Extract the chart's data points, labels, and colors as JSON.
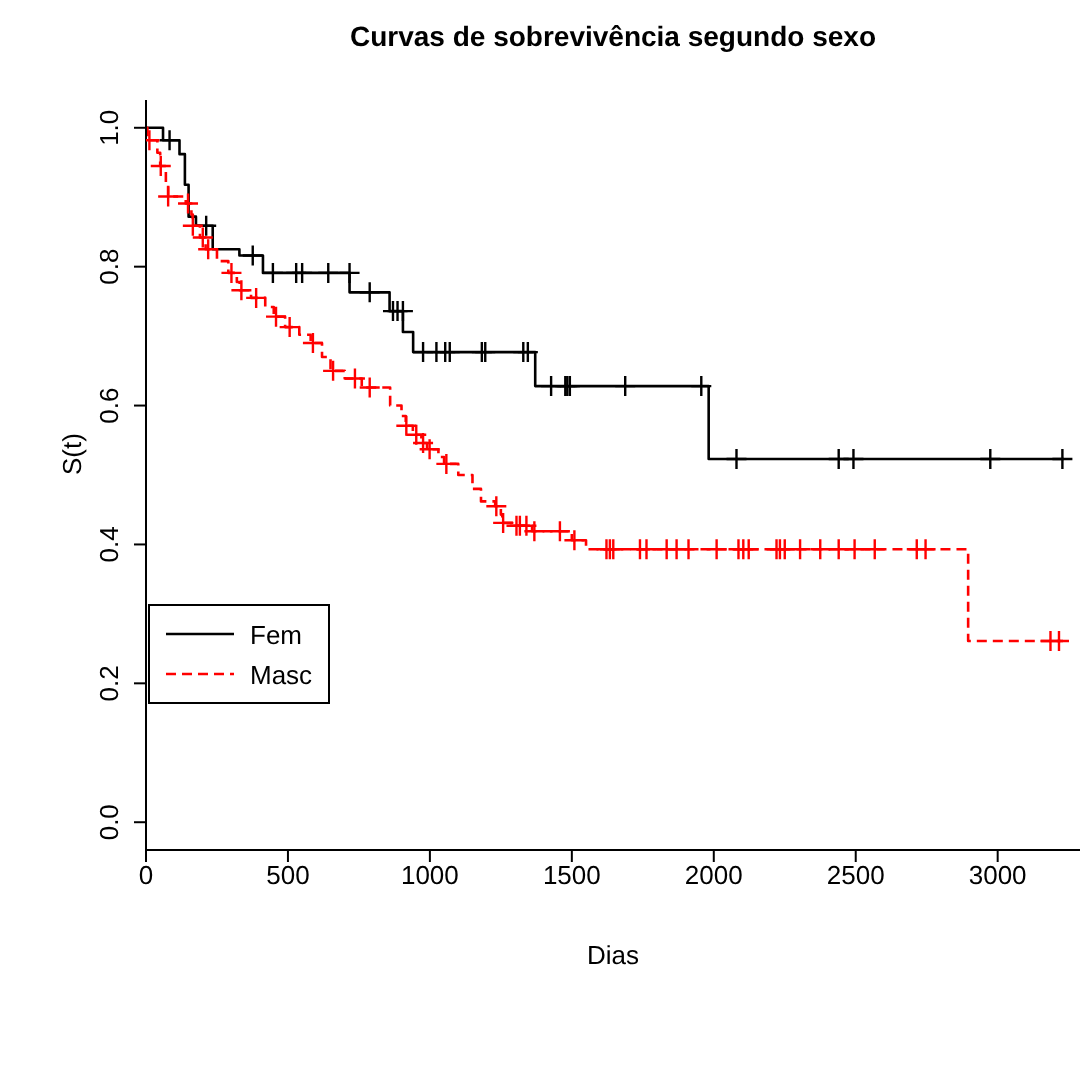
{
  "chart_data": {
    "type": "step",
    "title": "Curvas de sobrevivência segundo sexo",
    "xlabel": "Dias",
    "ylabel": "S(t)",
    "xlim": [
      0,
      3290
    ],
    "ylim": [
      -0.04,
      1.04
    ],
    "xticks": [
      0,
      500,
      1000,
      1500,
      2000,
      2500,
      3000
    ],
    "yticks": [
      {
        "value": 0,
        "label": "0.0"
      },
      {
        "value": 0.2,
        "label": "0.2"
      },
      {
        "value": 0.4,
        "label": "0.4"
      },
      {
        "value": 0.6,
        "label": "0.6"
      },
      {
        "value": 0.8,
        "label": "0.8"
      },
      {
        "value": 1,
        "label": "1.0"
      }
    ],
    "grid": false,
    "legend": "left",
    "series": [
      {
        "name": "Fem",
        "color": "#000000",
        "line_style": "solid",
        "x": [
          0,
          60,
          118,
          137,
          150,
          176,
          235,
          329,
          412,
          717,
          858,
          905,
          941,
          1371,
          1982,
          3233
        ],
        "values": [
          1.0,
          0.982,
          0.962,
          0.918,
          0.872,
          0.859,
          0.825,
          0.816,
          0.791,
          0.763,
          0.736,
          0.706,
          0.677,
          0.628,
          0.523,
          0.523
        ]
      },
      {
        "name": "Masc",
        "color": "#ff0000",
        "line_style": "dashed",
        "x": [
          0,
          5,
          40,
          50,
          70,
          78,
          140,
          160,
          165,
          190,
          210,
          250,
          290,
          320,
          330,
          370,
          420,
          450,
          490,
          540,
          580,
          620,
          650,
          700,
          760,
          860,
          900,
          915,
          940,
          970,
          990,
          1030,
          1050,
          1100,
          1150,
          1180,
          1230,
          1250,
          1255,
          1290,
          1360,
          1500,
          1550,
          2896,
          3230
        ],
        "values": [
          1.0,
          0.982,
          0.964,
          0.945,
          0.92,
          0.901,
          0.891,
          0.875,
          0.859,
          0.842,
          0.825,
          0.808,
          0.791,
          0.778,
          0.766,
          0.755,
          0.742,
          0.728,
          0.713,
          0.702,
          0.69,
          0.67,
          0.65,
          0.639,
          0.626,
          0.6,
          0.585,
          0.571,
          0.558,
          0.546,
          0.537,
          0.526,
          0.516,
          0.5,
          0.48,
          0.462,
          0.455,
          0.443,
          0.431,
          0.427,
          0.419,
          0.406,
          0.393,
          0.261,
          0.261
        ]
      },
      {
        "type": "scatter",
        "marker": "cross",
        "color": "#000000",
        "x": [
          83,
          212,
          376,
          447,
          529,
          550,
          642,
          717,
          788,
          870,
          886,
          905,
          976,
          1023,
          1054,
          1070,
          1183,
          1195,
          1329,
          1345,
          1427,
          1477,
          1484,
          1493,
          1688,
          1956,
          2080,
          2440,
          2492,
          2974,
          3228
        ],
        "values": [
          0.982,
          0.859,
          0.816,
          0.791,
          0.791,
          0.791,
          0.791,
          0.791,
          0.763,
          0.736,
          0.736,
          0.736,
          0.677,
          0.677,
          0.677,
          0.677,
          0.677,
          0.677,
          0.677,
          0.677,
          0.628,
          0.628,
          0.628,
          0.628,
          0.628,
          0.628,
          0.523,
          0.523,
          0.523,
          0.523,
          0.523
        ]
      },
      {
        "type": "scatter",
        "marker": "cross",
        "color": "#ff0000",
        "x": [
          12,
          52,
          78,
          148,
          165,
          200,
          219,
          301,
          336,
          388,
          458,
          506,
          588,
          659,
          736,
          788,
          917,
          952,
          976,
          999,
          1058,
          1234,
          1258,
          1305,
          1317,
          1340,
          1368,
          1458,
          1509,
          1622,
          1634,
          1646,
          1740,
          1763,
          1834,
          1869,
          1911,
          2010,
          2087,
          2104,
          2123,
          2221,
          2233,
          2250,
          2304,
          2375,
          2440,
          2496,
          2567,
          2715,
          2746,
          3186,
          3216
        ],
        "values": [
          0.982,
          0.945,
          0.901,
          0.891,
          0.859,
          0.842,
          0.825,
          0.791,
          0.766,
          0.755,
          0.728,
          0.713,
          0.69,
          0.65,
          0.639,
          0.626,
          0.571,
          0.558,
          0.546,
          0.537,
          0.516,
          0.455,
          0.431,
          0.427,
          0.427,
          0.427,
          0.419,
          0.419,
          0.406,
          0.393,
          0.393,
          0.393,
          0.393,
          0.393,
          0.393,
          0.393,
          0.393,
          0.393,
          0.393,
          0.393,
          0.393,
          0.393,
          0.393,
          0.393,
          0.393,
          0.393,
          0.393,
          0.393,
          0.393,
          0.393,
          0.393,
          0.261,
          0.261
        ]
      }
    ]
  }
}
